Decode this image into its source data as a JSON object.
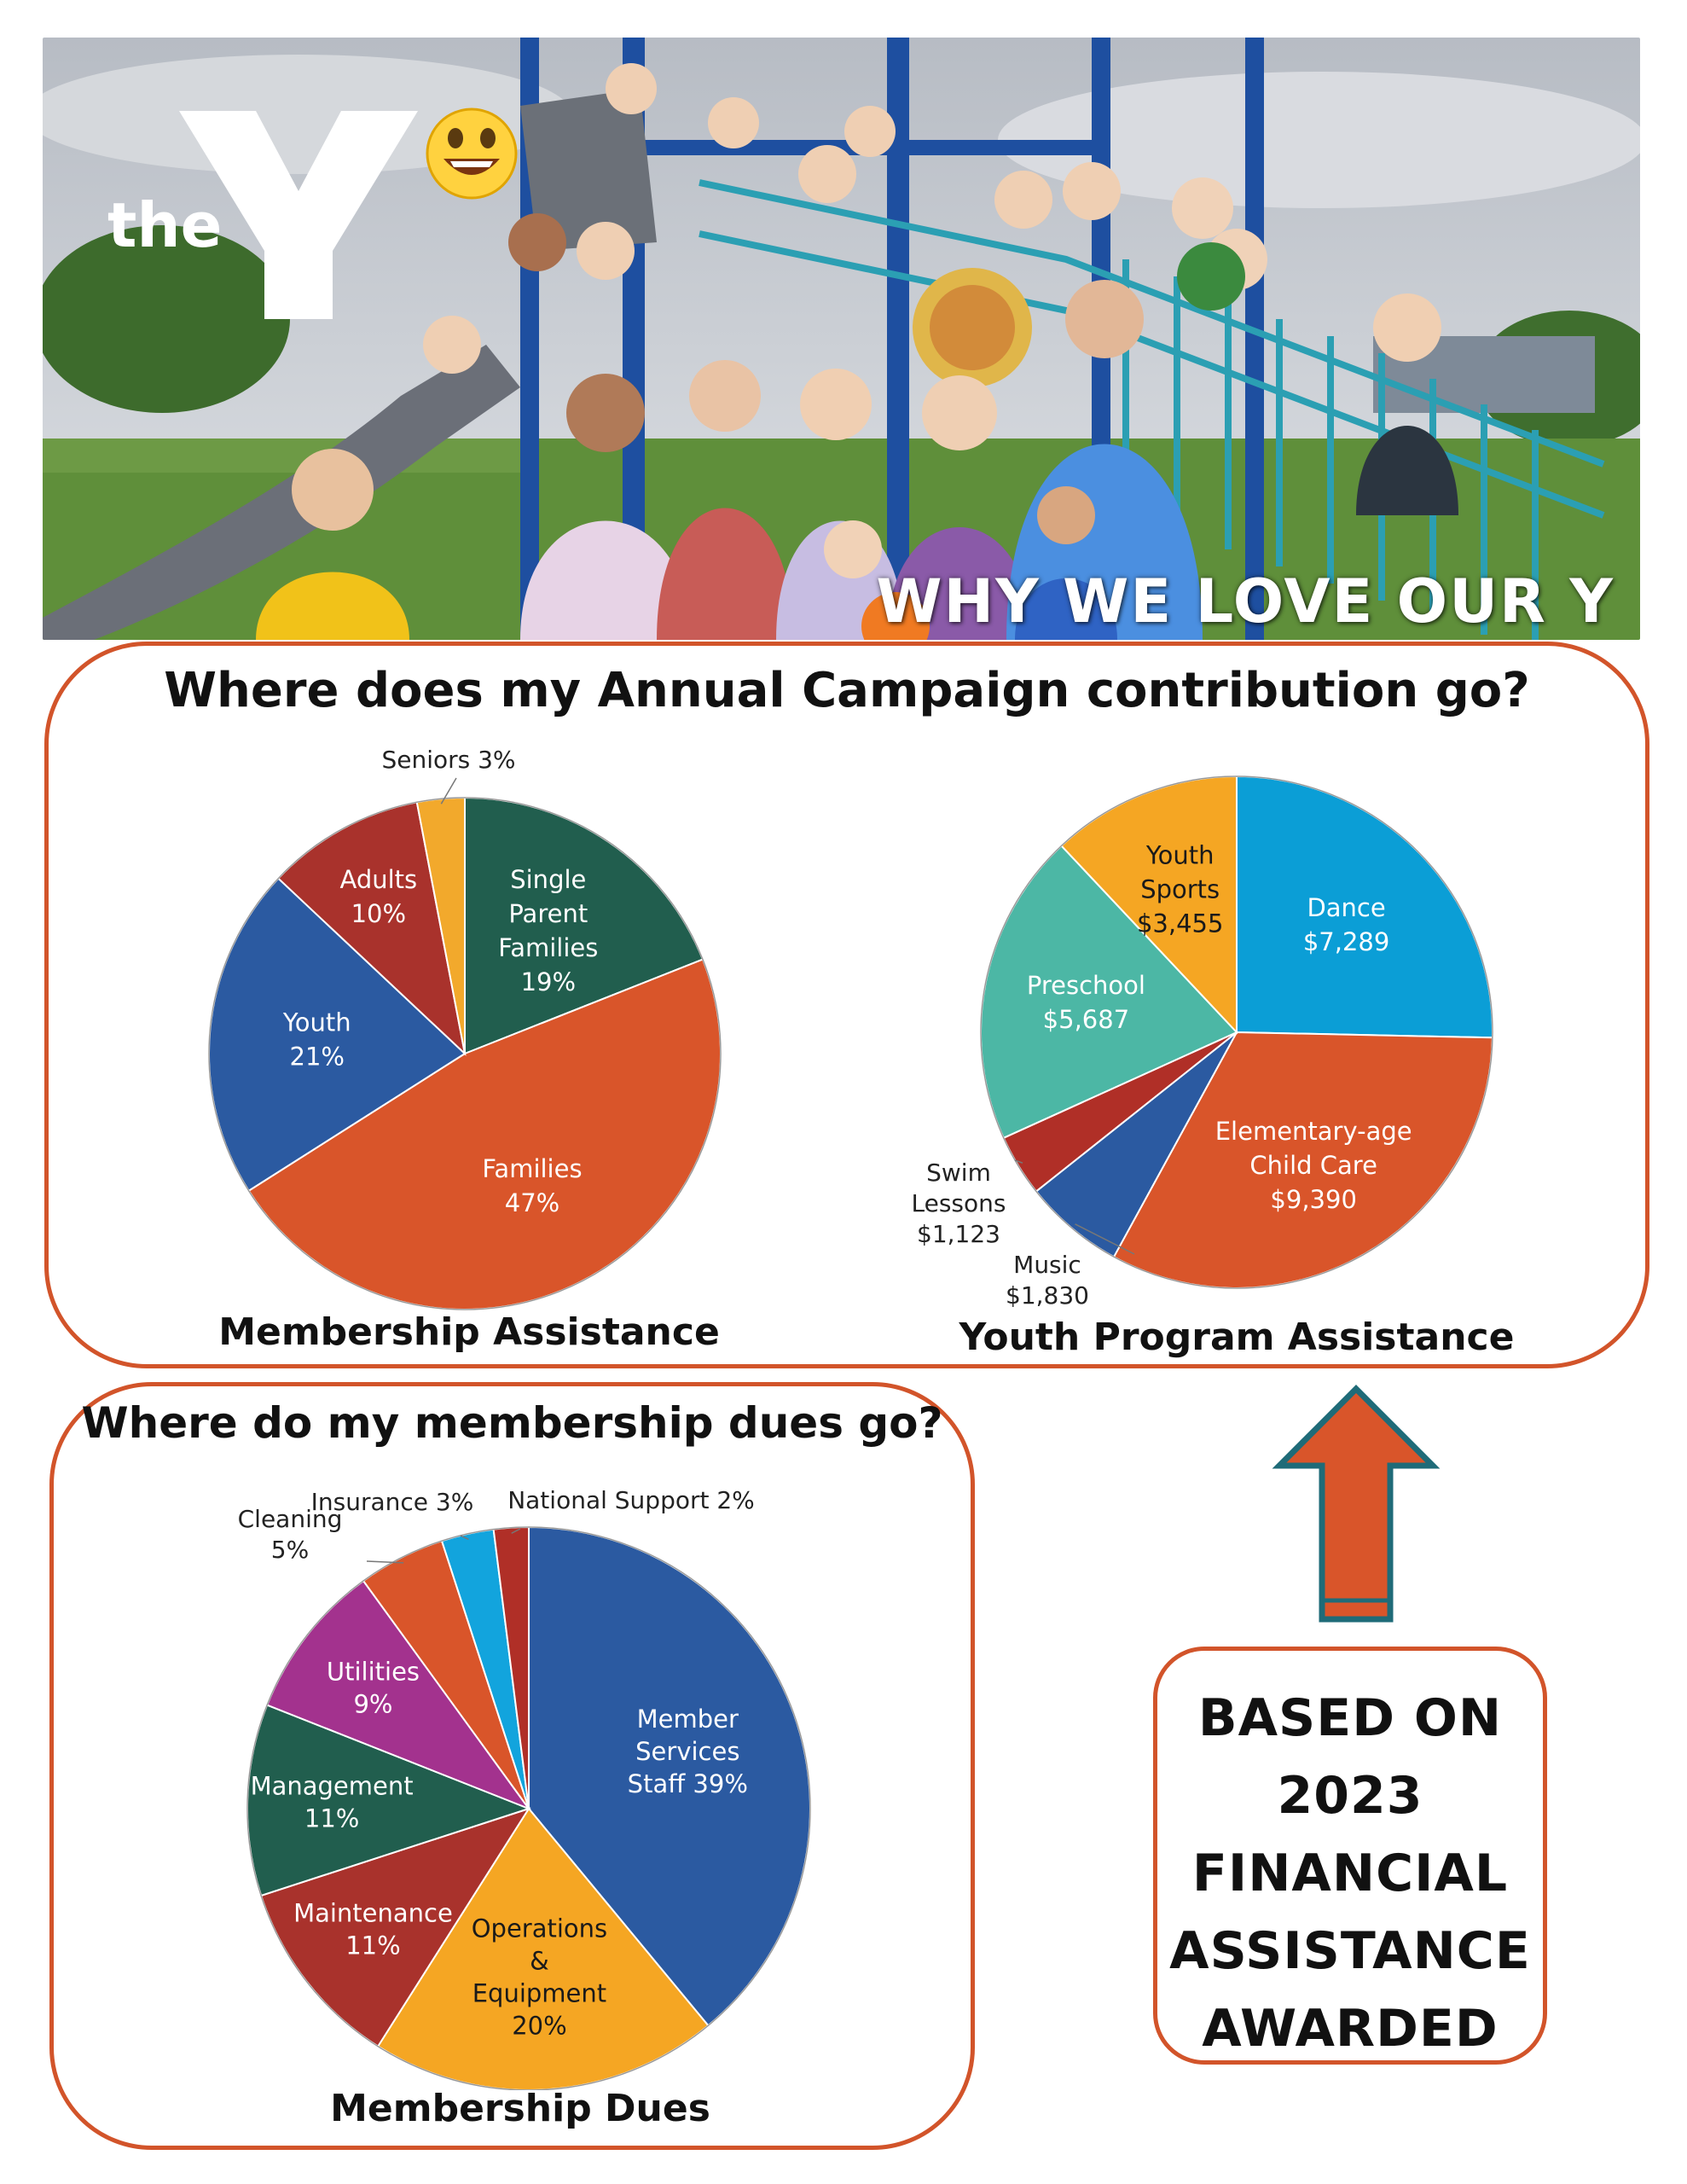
{
  "hero": {
    "logo_text": "the",
    "logo_mark": "YMCA",
    "caption": "WHY WE LOVE OUR Y",
    "colors": {
      "sky": "#c9ccd1",
      "structure": "#1e4fa0",
      "rail": "#2b9fb3",
      "slide": "#6b6f78",
      "grass": "#5f8f3a"
    }
  },
  "campaign": {
    "title": "Where does my Annual Campaign contribution go?"
  },
  "dues_panel": {
    "title": "Where do my membership dues go?"
  },
  "note": {
    "lines": [
      "BASED ON",
      "2023",
      "FINANCIAL",
      "ASSISTANCE",
      "AWARDED"
    ]
  },
  "arrow": {
    "fill": "#d9552a",
    "stroke": "#1f6b78",
    "icon": "up-arrow-icon"
  },
  "chart_data": [
    {
      "type": "pie",
      "title": "Membership Assistance",
      "slices": [
        {
          "lines": [
            "Single",
            "Parent",
            "Families",
            "19%"
          ],
          "value": 19,
          "color": "#215e4e"
        },
        {
          "lines": [
            "Families",
            "47%"
          ],
          "value": 47,
          "color": "#d9552a"
        },
        {
          "lines": [
            "Youth",
            "21%"
          ],
          "value": 21,
          "color": "#2b5aa1"
        },
        {
          "lines": [
            "Adults",
            "10%"
          ],
          "value": 10,
          "color": "#a9322c"
        },
        {
          "lines": [
            "Seniors 3%"
          ],
          "value": 3,
          "color": "#f2a92c",
          "external": true
        }
      ]
    },
    {
      "type": "pie",
      "title": "Youth Program Assistance",
      "slices": [
        {
          "lines": [
            "Dance",
            "$7,289"
          ],
          "value": 7289,
          "color": "#0b9ed6"
        },
        {
          "lines": [
            "Elementary-age",
            "Child Care",
            "$9,390"
          ],
          "value": 9390,
          "color": "#d9552a"
        },
        {
          "lines": [
            "Music",
            "$1,830"
          ],
          "value": 1830,
          "color": "#2b5aa1",
          "external": true
        },
        {
          "lines": [
            "Swim",
            "Lessons",
            "$1,123"
          ],
          "value": 1123,
          "color": "#b02f27",
          "external": true
        },
        {
          "lines": [
            "Preschool",
            "$5,687"
          ],
          "value": 5687,
          "color": "#4cb7a5"
        },
        {
          "lines": [
            "Youth",
            "Sports",
            "$3,455"
          ],
          "value": 3455,
          "color": "#f5a623"
        }
      ]
    },
    {
      "type": "pie",
      "title": "Membership Dues",
      "slices": [
        {
          "lines": [
            "Member",
            "Services",
            "Staff   39%"
          ],
          "value": 39,
          "color": "#2b5aa1"
        },
        {
          "lines": [
            "Operations",
            "&",
            "Equipment",
            "20%"
          ],
          "value": 20,
          "color": "#f5a623"
        },
        {
          "lines": [
            "Maintenance",
            "11%"
          ],
          "value": 11,
          "color": "#a9322c"
        },
        {
          "lines": [
            "Management",
            "11%"
          ],
          "value": 11,
          "color": "#215e4e"
        },
        {
          "lines": [
            "Utilities",
            "9%"
          ],
          "value": 9,
          "color": "#a3328e"
        },
        {
          "lines": [
            "Cleaning",
            "5%"
          ],
          "value": 5,
          "color": "#d9552a",
          "external": true
        },
        {
          "lines": [
            "Insurance 3%"
          ],
          "value": 3,
          "color": "#12a4dd",
          "external": true
        },
        {
          "lines": [
            "National Support 2%"
          ],
          "value": 2,
          "color": "#b02f27",
          "external": true
        }
      ]
    }
  ]
}
